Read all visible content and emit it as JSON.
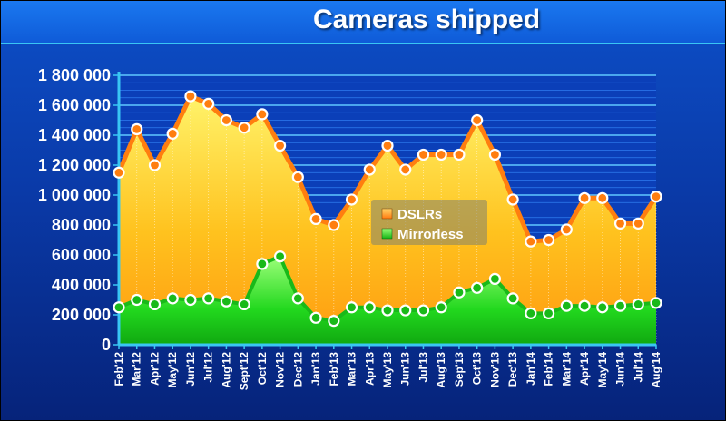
{
  "chart_data": {
    "type": "area",
    "title": "Cameras shipped",
    "xlabel": "",
    "ylabel": "",
    "ylim": [
      0,
      1800000
    ],
    "y_ticks": [
      "0",
      "200 000",
      "400 000",
      "600 000",
      "800 000",
      "1 000 000",
      "1 200 000",
      "1 400 000",
      "1 600 000",
      "1 800 000"
    ],
    "grid": true,
    "legend_position": "center",
    "categories": [
      "Feb'12",
      "Mar'12",
      "Apr'12",
      "May'12",
      "Jun'12",
      "Jul'12",
      "Aug'12",
      "Sept'12",
      "Oct'12",
      "Nov'12",
      "Dec'12",
      "Jan'13",
      "Feb'13",
      "Mar'13",
      "Apr'13",
      "May'13",
      "Jun'13",
      "Jul'13",
      "Aug'13",
      "Sep'13",
      "Oct'13",
      "Nov'13",
      "Dec'13",
      "Jan'14",
      "Feb'14",
      "Mar'14",
      "Apr'14",
      "May'14",
      "Jun'14",
      "Jul'14",
      "Aug'14"
    ],
    "series": [
      {
        "name": "DSLRs",
        "color": "#ff8c1a",
        "values": [
          1150000,
          1440000,
          1200000,
          1410000,
          1660000,
          1610000,
          1500000,
          1450000,
          1540000,
          1330000,
          1120000,
          840000,
          800000,
          970000,
          1170000,
          1330000,
          1170000,
          1270000,
          1270000,
          1270000,
          1500000,
          1270000,
          970000,
          690000,
          700000,
          770000,
          980000,
          980000,
          810000,
          810000,
          990000
        ]
      },
      {
        "name": "Mirrorless",
        "color": "#22cc22",
        "values": [
          250000,
          300000,
          270000,
          310000,
          300000,
          310000,
          290000,
          270000,
          540000,
          590000,
          310000,
          180000,
          160000,
          250000,
          250000,
          230000,
          230000,
          230000,
          250000,
          350000,
          380000,
          440000,
          310000,
          210000,
          210000,
          260000,
          260000,
          250000,
          260000,
          270000,
          280000
        ]
      }
    ]
  }
}
